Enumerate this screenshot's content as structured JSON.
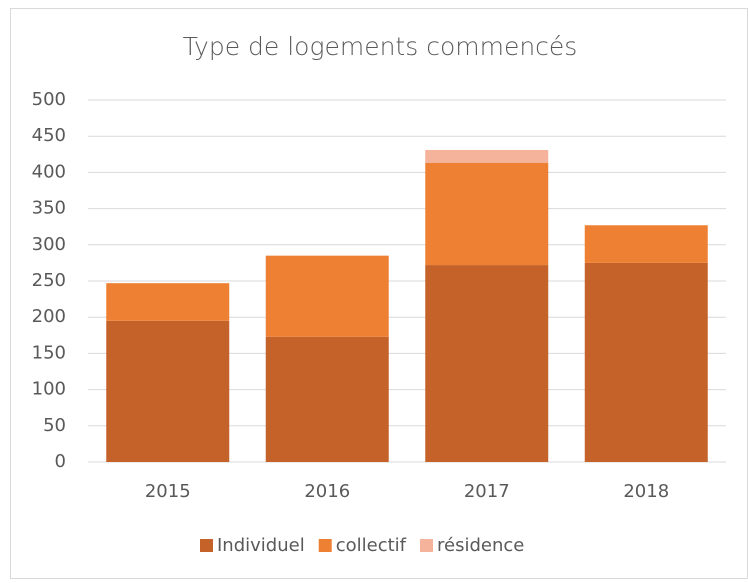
{
  "chart_data": {
    "type": "stacked_bar",
    "title": "Type de logements commencés",
    "categories": [
      "2015",
      "2016",
      "2017",
      "2018"
    ],
    "series": [
      {
        "name": "Individuel",
        "color": "#c4622a",
        "values": [
          195,
          173,
          272,
          275
        ]
      },
      {
        "name": "collectif",
        "color": "#ee8033",
        "values": [
          52,
          112,
          141,
          52
        ]
      },
      {
        "name": "résidence",
        "color": "#f4b39a",
        "values": [
          0,
          0,
          18,
          0
        ]
      }
    ],
    "ylim": [
      0,
      500
    ],
    "yticks": [
      0,
      50,
      100,
      150,
      200,
      250,
      300,
      350,
      400,
      450,
      500
    ],
    "grid": true,
    "legend": "bottom"
  }
}
